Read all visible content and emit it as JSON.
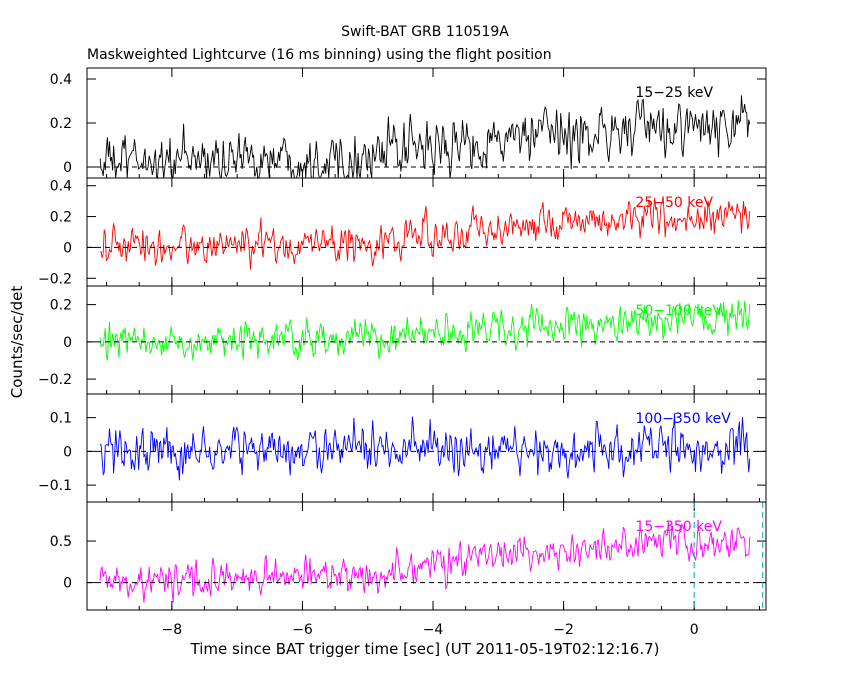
{
  "chart_data": {
    "type": "line",
    "title": "Swift-BAT GRB 110519A",
    "subtitle": "Maskweighted Lightcurve (16 ms binning) using the flight position",
    "xlabel": "Time since BAT trigger time [sec] (UT 2011-05-19T02:12:16.7)",
    "ylabel": "Counts/sec/det",
    "xlim": [
      -9.3,
      1.1
    ],
    "xticks": [
      -8,
      -6,
      -4,
      -2,
      0
    ],
    "xtick_labels": [
      "−8",
      "−6",
      "−4",
      "−2",
      "0"
    ],
    "x_data_range": [
      -9.1,
      0.85
    ],
    "bin_width_sec": 0.016,
    "markers": [
      {
        "x": 0.0,
        "style": "dashed",
        "color": "#00aaaa",
        "panel": 4
      },
      {
        "x": 1.05,
        "style": "dashed",
        "color": "#00aaaa",
        "panel": 4
      }
    ],
    "panels": [
      {
        "band": "15−25 keV",
        "color": "#000000",
        "ylim": [
          -0.05,
          0.45
        ],
        "yticks": [
          0,
          0.2,
          0.4
        ],
        "ytick_labels": [
          "0",
          "0.2",
          "0.4"
        ],
        "zero_line": true,
        "trend": [
          [
            -9.1,
            0.02
          ],
          [
            -5.0,
            0.05
          ],
          [
            -3.0,
            0.12
          ],
          [
            -1.0,
            0.17
          ],
          [
            0.85,
            0.18
          ]
        ],
        "noise": 0.085
      },
      {
        "band": "25−50 keV",
        "color": "#ff0000",
        "ylim": [
          -0.25,
          0.45
        ],
        "yticks": [
          -0.2,
          0,
          0.2,
          0.4
        ],
        "ytick_labels": [
          "−0.2",
          "0",
          "0.2",
          "0.4"
        ],
        "zero_line": true,
        "trend": [
          [
            -9.1,
            0.0
          ],
          [
            -5.0,
            0.03
          ],
          [
            -3.0,
            0.13
          ],
          [
            -1.0,
            0.19
          ],
          [
            0.85,
            0.2
          ]
        ],
        "noise": 0.085
      },
      {
        "band": "50−100 keV",
        "color": "#00ff00",
        "ylim": [
          -0.28,
          0.3
        ],
        "yticks": [
          -0.2,
          0,
          0.2
        ],
        "ytick_labels": [
          "−0.2",
          "0",
          "0.2"
        ],
        "zero_line": true,
        "trend": [
          [
            -9.1,
            -0.01
          ],
          [
            -5.0,
            0.02
          ],
          [
            -3.0,
            0.07
          ],
          [
            -1.0,
            0.1
          ],
          [
            0.85,
            0.12
          ]
        ],
        "noise": 0.065
      },
      {
        "band": "100−350 keV",
        "color": "#0000ff",
        "ylim": [
          -0.15,
          0.17
        ],
        "yticks": [
          -0.1,
          0,
          0.1
        ],
        "ytick_labels": [
          "−0.1",
          "0",
          "0.1"
        ],
        "zero_line": true,
        "trend": [
          [
            -9.1,
            0.0
          ],
          [
            0.85,
            0.01
          ]
        ],
        "noise": 0.05
      },
      {
        "band": "15−350 keV",
        "color": "#ff00ff",
        "ylim": [
          -0.33,
          0.97
        ],
        "yticks": [
          0,
          0.5
        ],
        "ytick_labels": [
          "0",
          "0.5"
        ],
        "zero_line": true,
        "trend": [
          [
            -9.1,
            0.0
          ],
          [
            -5.0,
            0.1
          ],
          [
            -3.0,
            0.32
          ],
          [
            -1.0,
            0.45
          ],
          [
            0.85,
            0.5
          ]
        ],
        "noise": 0.15
      }
    ]
  }
}
